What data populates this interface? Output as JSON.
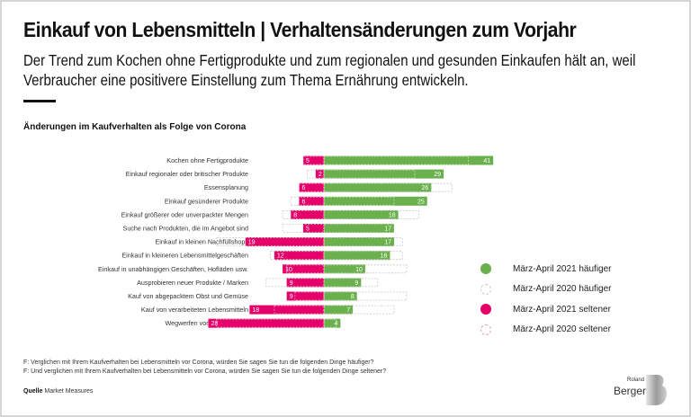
{
  "header": {
    "title": "Einkauf von Lebensmitteln | Verhaltensänderungen zum Vorjahr",
    "subtitle": "Der Trend zum Kochen ohne Fertigprodukte und zum regionalen und gesunden Einkaufen hält an, weil Verbraucher eine positivere Einstellung zum Thema Ernährung entwickeln."
  },
  "colors": {
    "green_2021": "#6ab04c",
    "pink_2021": "#e5006a",
    "dashed_2020": "#c8c8c8",
    "dashed_2020_seltener": "#e89ab9"
  },
  "chart_data": {
    "type": "bar",
    "orientation": "horizontal-diverging",
    "title": "Änderungen im Kaufverhalten als Folge von Corona",
    "xlabel": "",
    "ylabel": "",
    "categories": [
      "Kochen ohne Fertigprodukte",
      "Einkauf regionaler oder britischer Produkte",
      "Essensplanung",
      "Einkauf gesünderer Produkte",
      "Einkauf größerer oder unverpackter Mengen",
      "Suche nach Produkten, die im Angebot sind",
      "Einkauf in kleinen Nachfüllshops",
      "Einkauf in kleineren Lebensmittelgeschäften",
      "Einkauf in unabhängigen Geschäften, Hofläden usw.",
      "Ausprobieren neuer Produkte / Marken",
      "Kauf von abgepacktem Obst und Gemüse",
      "Kauf von verarbeiteten Lebensmitteln",
      "Wegwerfen von Lebensmittel"
    ],
    "series": [
      {
        "name": "März-April 2021 häufiger",
        "values": [
          41,
          29,
          26,
          25,
          18,
          17,
          17,
          16,
          10,
          9,
          8,
          7,
          4
        ]
      },
      {
        "name": "März-April 2020 häufiger",
        "values": [
          35,
          22,
          31,
          17,
          23,
          17,
          19,
          19,
          20,
          13,
          20,
          17,
          3
        ]
      },
      {
        "name": "März-April 2021 seltener",
        "values": [
          5,
          2,
          6,
          6,
          8,
          5,
          19,
          12,
          10,
          9,
          9,
          18,
          28
        ]
      },
      {
        "name": "März-April 2020 seltener",
        "values": [
          5,
          4,
          6,
          8,
          10,
          10,
          26,
          13,
          9,
          14,
          7,
          12,
          26
        ]
      }
    ],
    "legend_position": "right",
    "grid": false,
    "xlim": [
      -28,
      41
    ]
  },
  "legend": {
    "items": [
      {
        "label": "März-April 2021 häufiger"
      },
      {
        "label": "März-April 2020 häufiger"
      },
      {
        "label": "März-April 2021 seltener"
      },
      {
        "label": "März-April 2020 seltener"
      }
    ]
  },
  "footer": {
    "note1": "F: Verglichen mit Ihrem Kaufverhalten bei Lebensmitteln vor Corona, würden Sie sagen Sie tun die folgenden Dinge häufiger?",
    "note2": "F: Und verglichen mit Ihrem Kaufverhalten bei Lebensmitteln vor Corona, würden Sie sagen Sie tun die folgenden Dinge seltener?",
    "source_label": "Quelle",
    "source_value": "Market Measures"
  },
  "logo": {
    "small": "Roland",
    "big": "Berger"
  }
}
